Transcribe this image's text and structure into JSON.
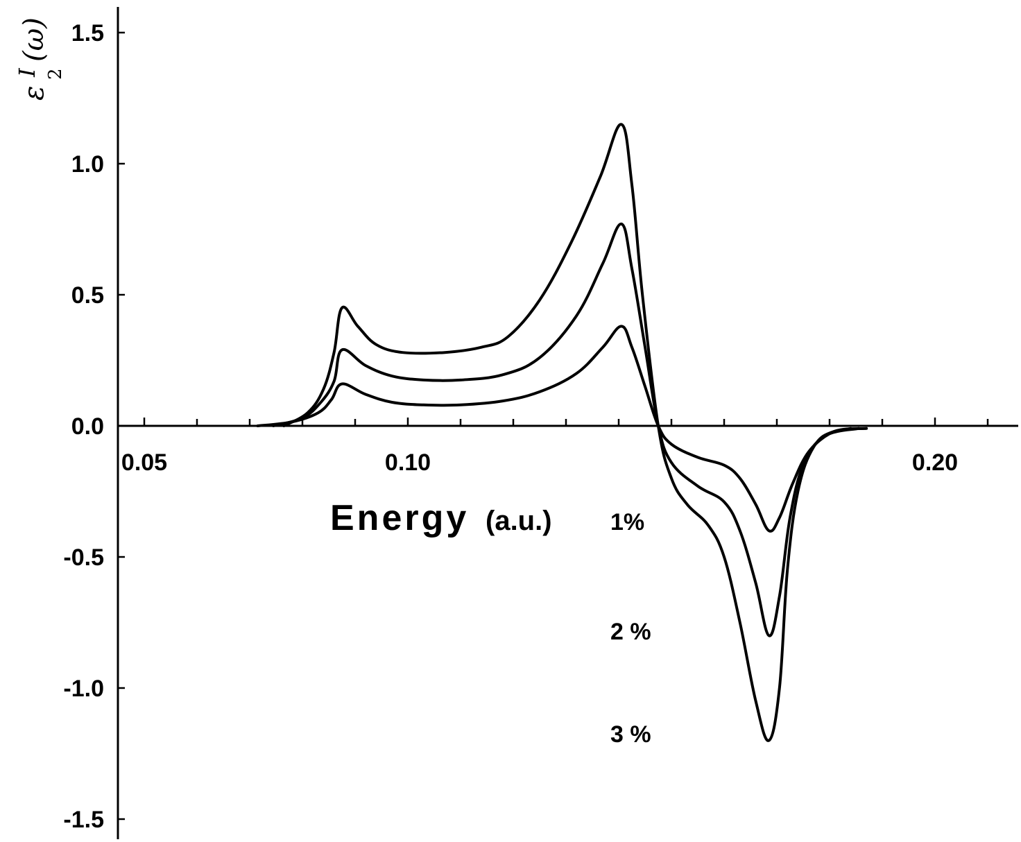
{
  "chart_data": {
    "type": "line",
    "title": "",
    "xlabel": "Energy",
    "xlabel_unit": "(a.u.)",
    "ylabel": {
      "symbol": "ε",
      "superscript": "I",
      "subscript": "2",
      "argument": "(ω)"
    },
    "xlim": [
      0.045,
      0.235
    ],
    "ylim": [
      -1.6,
      1.6
    ],
    "x_ticks": [
      {
        "value": 0.05,
        "label": "0.05"
      },
      {
        "value": 0.1,
        "label": "0.10"
      },
      {
        "value": 0.2,
        "label": "0.20"
      }
    ],
    "x_minor_ticks": [
      0.06,
      0.07,
      0.08,
      0.09,
      0.11,
      0.12,
      0.13,
      0.14,
      0.15,
      0.16,
      0.17,
      0.18,
      0.19,
      0.21,
      0.22,
      0.23
    ],
    "y_ticks": [
      {
        "value": 1.5,
        "label": "1.5"
      },
      {
        "value": 1.0,
        "label": "1.0"
      },
      {
        "value": 0.5,
        "label": "0.5"
      },
      {
        "value": 0.0,
        "label": "0.0"
      },
      {
        "value": -0.5,
        "label": "-0.5"
      },
      {
        "value": -1.0,
        "label": "-1.0"
      },
      {
        "value": -1.5,
        "label": "-1.5"
      }
    ],
    "grid": false,
    "legend": "none",
    "series": [
      {
        "name": "1%",
        "points": [
          [
            0.0715,
            0.0
          ],
          [
            0.078,
            0.015
          ],
          [
            0.083,
            0.05
          ],
          [
            0.0855,
            0.1
          ],
          [
            0.0875,
            0.16
          ],
          [
            0.092,
            0.12
          ],
          [
            0.097,
            0.09
          ],
          [
            0.103,
            0.08
          ],
          [
            0.11,
            0.08
          ],
          [
            0.118,
            0.095
          ],
          [
            0.125,
            0.13
          ],
          [
            0.132,
            0.2
          ],
          [
            0.137,
            0.3
          ],
          [
            0.1405,
            0.38
          ],
          [
            0.1425,
            0.3
          ],
          [
            0.145,
            0.15
          ],
          [
            0.1475,
            0.0
          ],
          [
            0.15,
            -0.07
          ],
          [
            0.155,
            -0.12
          ],
          [
            0.16,
            -0.15
          ],
          [
            0.163,
            -0.2
          ],
          [
            0.166,
            -0.3
          ],
          [
            0.1685,
            -0.4
          ],
          [
            0.1705,
            -0.35
          ],
          [
            0.173,
            -0.22
          ],
          [
            0.176,
            -0.1
          ],
          [
            0.18,
            -0.03
          ],
          [
            0.184,
            -0.01
          ]
        ]
      },
      {
        "name": "2%",
        "points": [
          [
            0.0745,
            0.0
          ],
          [
            0.08,
            0.03
          ],
          [
            0.0835,
            0.09
          ],
          [
            0.086,
            0.17
          ],
          [
            0.0875,
            0.29
          ],
          [
            0.092,
            0.23
          ],
          [
            0.097,
            0.19
          ],
          [
            0.103,
            0.175
          ],
          [
            0.11,
            0.175
          ],
          [
            0.118,
            0.195
          ],
          [
            0.125,
            0.26
          ],
          [
            0.132,
            0.42
          ],
          [
            0.137,
            0.62
          ],
          [
            0.1405,
            0.77
          ],
          [
            0.1425,
            0.6
          ],
          [
            0.145,
            0.3
          ],
          [
            0.1475,
            0.0
          ],
          [
            0.15,
            -0.14
          ],
          [
            0.155,
            -0.23
          ],
          [
            0.16,
            -0.29
          ],
          [
            0.163,
            -0.4
          ],
          [
            0.166,
            -0.6
          ],
          [
            0.1685,
            -0.8
          ],
          [
            0.1705,
            -0.65
          ],
          [
            0.1725,
            -0.35
          ],
          [
            0.175,
            -0.15
          ],
          [
            0.179,
            -0.04
          ],
          [
            0.1855,
            -0.01
          ]
        ]
      },
      {
        "name": "3%",
        "points": [
          [
            0.0765,
            0.0
          ],
          [
            0.081,
            0.05
          ],
          [
            0.084,
            0.14
          ],
          [
            0.086,
            0.28
          ],
          [
            0.0875,
            0.45
          ],
          [
            0.0905,
            0.38
          ],
          [
            0.094,
            0.31
          ],
          [
            0.099,
            0.28
          ],
          [
            0.107,
            0.28
          ],
          [
            0.114,
            0.3
          ],
          [
            0.119,
            0.34
          ],
          [
            0.125,
            0.48
          ],
          [
            0.131,
            0.7
          ],
          [
            0.1365,
            0.95
          ],
          [
            0.1405,
            1.15
          ],
          [
            0.1425,
            0.92
          ],
          [
            0.1445,
            0.5
          ],
          [
            0.1475,
            0.0
          ],
          [
            0.15,
            -0.2
          ],
          [
            0.153,
            -0.3
          ],
          [
            0.157,
            -0.38
          ],
          [
            0.16,
            -0.5
          ],
          [
            0.163,
            -0.75
          ],
          [
            0.166,
            -1.05
          ],
          [
            0.1685,
            -1.2
          ],
          [
            0.1705,
            -1.0
          ],
          [
            0.172,
            -0.55
          ],
          [
            0.174,
            -0.25
          ],
          [
            0.177,
            -0.08
          ],
          [
            0.181,
            -0.02
          ],
          [
            0.187,
            -0.01
          ]
        ]
      }
    ],
    "series_labels": [
      {
        "series": "1%",
        "label": "1%"
      },
      {
        "series": "2%",
        "label": "2 %"
      },
      {
        "series": "3%",
        "label": "3 %"
      }
    ]
  }
}
